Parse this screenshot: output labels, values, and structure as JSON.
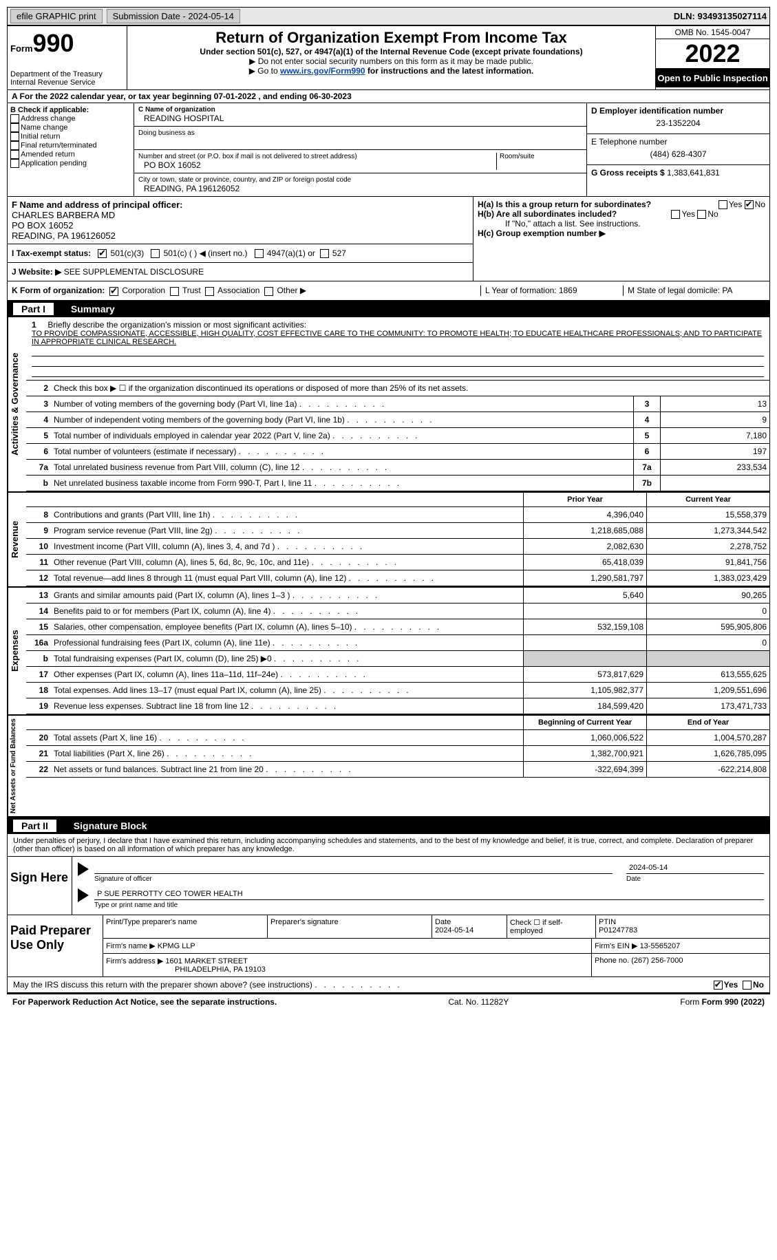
{
  "header_bar": {
    "efile": "efile GRAPHIC print",
    "submission": "Submission Date - 2024-05-14",
    "dln": "DLN: 93493135027114"
  },
  "top": {
    "form_label": "Form",
    "form_num": "990",
    "dept": "Department of the Treasury Internal Revenue Service",
    "title": "Return of Organization Exempt From Income Tax",
    "subtitle": "Under section 501(c), 527, or 4947(a)(1) of the Internal Revenue Code (except private foundations)",
    "note1": "▶ Do not enter social security numbers on this form as it may be made public.",
    "note2_pre": "▶ Go to ",
    "note2_link": "www.irs.gov/Form990",
    "note2_post": " for instructions and the latest information.",
    "omb": "OMB No. 1545-0047",
    "year": "2022",
    "open": "Open to Public Inspection"
  },
  "row_a": "A For the 2022 calendar year, or tax year beginning 07-01-2022   , and ending 06-30-2023",
  "box_b": {
    "label": "B Check if applicable:",
    "items": [
      "Address change",
      "Name change",
      "Initial return",
      "Final return/terminated",
      "Amended return",
      "Application pending"
    ]
  },
  "box_c": {
    "name_label": "C Name of organization",
    "name": "READING HOSPITAL",
    "dba_label": "Doing business as",
    "addr_label": "Number and street (or P.O. box if mail is not delivered to street address)",
    "room_label": "Room/suite",
    "addr": "PO BOX 16052",
    "city_label": "City or town, state or province, country, and ZIP or foreign postal code",
    "city": "READING, PA  196126052"
  },
  "box_d": {
    "ein_label": "D Employer identification number",
    "ein": "23-1352204",
    "tel_label": "E Telephone number",
    "tel": "(484) 628-4307",
    "gross_label": "G Gross receipts $",
    "gross": "1,383,641,831"
  },
  "box_f": {
    "label": "F  Name and address of principal officer:",
    "name": "CHARLES BARBERA MD",
    "addr1": "PO BOX 16052",
    "addr2": "READING, PA  196126052"
  },
  "box_h": {
    "ha": "H(a)  Is this a group return for subordinates?",
    "hb": "H(b)  Are all subordinates included?",
    "hb_note": "If \"No,\" attach a list. See instructions.",
    "hc": "H(c)  Group exemption number ▶",
    "yes": "Yes",
    "no": "No"
  },
  "row_i": {
    "label": "I   Tax-exempt status:",
    "opt1": "501(c)(3)",
    "opt2": "501(c) (  ) ◀ (insert no.)",
    "opt3": "4947(a)(1) or",
    "opt4": "527"
  },
  "row_j": {
    "label": "J   Website: ▶",
    "value": "SEE SUPPLEMENTAL DISCLOSURE"
  },
  "row_k": {
    "label": "K Form of organization:",
    "opts": [
      "Corporation",
      "Trust",
      "Association",
      "Other ▶"
    ]
  },
  "row_l": "L Year of formation: 1869",
  "row_m": "M State of legal domicile: PA",
  "part1_title": "Summary",
  "part1_num": "Part I",
  "mission": {
    "num": "1",
    "label": "Briefly describe the organization's mission or most significant activities:",
    "text": "TO PROVIDE COMPASSIONATE, ACCESSIBLE, HIGH QUALITY, COST EFFECTIVE CARE TO THE COMMUNITY: TO PROMOTE HEALTH; TO EDUCATE HEALTHCARE PROFESSIONALS; AND TO PARTICIPATE IN APPROPRIATE CLINICAL RESEARCH."
  },
  "line2": "Check this box ▶ ☐ if the organization discontinued its operations or disposed of more than 25% of its net assets.",
  "vert_labels": {
    "activities": "Activities & Governance",
    "revenue": "Revenue",
    "expenses": "Expenses",
    "netassets": "Net Assets or Fund Balances"
  },
  "activity_lines": [
    {
      "n": "3",
      "label": "Number of voting members of the governing body (Part VI, line 1a)",
      "box": "3",
      "val": "13"
    },
    {
      "n": "4",
      "label": "Number of independent voting members of the governing body (Part VI, line 1b)",
      "box": "4",
      "val": "9"
    },
    {
      "n": "5",
      "label": "Total number of individuals employed in calendar year 2022 (Part V, line 2a)",
      "box": "5",
      "val": "7,180"
    },
    {
      "n": "6",
      "label": "Total number of volunteers (estimate if necessary)",
      "box": "6",
      "val": "197"
    },
    {
      "n": "7a",
      "label": "Total unrelated business revenue from Part VIII, column (C), line 12",
      "box": "7a",
      "val": "233,534"
    },
    {
      "n": "b",
      "label": "Net unrelated business taxable income from Form 990-T, Part I, line 11",
      "box": "7b",
      "val": ""
    }
  ],
  "col_prior": "Prior Year",
  "col_current": "Current Year",
  "revenue_lines": [
    {
      "n": "8",
      "label": "Contributions and grants (Part VIII, line 1h)",
      "prior": "4,396,040",
      "curr": "15,558,379"
    },
    {
      "n": "9",
      "label": "Program service revenue (Part VIII, line 2g)",
      "prior": "1,218,685,088",
      "curr": "1,273,344,542"
    },
    {
      "n": "10",
      "label": "Investment income (Part VIII, column (A), lines 3, 4, and 7d )",
      "prior": "2,082,630",
      "curr": "2,278,752"
    },
    {
      "n": "11",
      "label": "Other revenue (Part VIII, column (A), lines 5, 6d, 8c, 9c, 10c, and 11e)",
      "prior": "65,418,039",
      "curr": "91,841,756"
    },
    {
      "n": "12",
      "label": "Total revenue—add lines 8 through 11 (must equal Part VIII, column (A), line 12)",
      "prior": "1,290,581,797",
      "curr": "1,383,023,429"
    }
  ],
  "expense_lines": [
    {
      "n": "13",
      "label": "Grants and similar amounts paid (Part IX, column (A), lines 1–3 )",
      "prior": "5,640",
      "curr": "90,265"
    },
    {
      "n": "14",
      "label": "Benefits paid to or for members (Part IX, column (A), line 4)",
      "prior": "",
      "curr": "0"
    },
    {
      "n": "15",
      "label": "Salaries, other compensation, employee benefits (Part IX, column (A), lines 5–10)",
      "prior": "532,159,108",
      "curr": "595,905,806"
    },
    {
      "n": "16a",
      "label": "Professional fundraising fees (Part IX, column (A), line 11e)",
      "prior": "",
      "curr": "0"
    },
    {
      "n": "b",
      "label": "Total fundraising expenses (Part IX, column (D), line 25) ▶0",
      "prior": "GREY",
      "curr": "GREY"
    },
    {
      "n": "17",
      "label": "Other expenses (Part IX, column (A), lines 11a–11d, 11f–24e)",
      "prior": "573,817,629",
      "curr": "613,555,625"
    },
    {
      "n": "18",
      "label": "Total expenses. Add lines 13–17 (must equal Part IX, column (A), line 25)",
      "prior": "1,105,982,377",
      "curr": "1,209,551,696"
    },
    {
      "n": "19",
      "label": "Revenue less expenses. Subtract line 18 from line 12",
      "prior": "184,599,420",
      "curr": "173,471,733"
    }
  ],
  "col_begin": "Beginning of Current Year",
  "col_end": "End of Year",
  "net_lines": [
    {
      "n": "20",
      "label": "Total assets (Part X, line 16)",
      "prior": "1,060,006,522",
      "curr": "1,004,570,287"
    },
    {
      "n": "21",
      "label": "Total liabilities (Part X, line 26)",
      "prior": "1,382,700,921",
      "curr": "1,626,785,095"
    },
    {
      "n": "22",
      "label": "Net assets or fund balances. Subtract line 21 from line 20",
      "prior": "-322,694,399",
      "curr": "-622,214,808"
    }
  ],
  "part2_num": "Part II",
  "part2_title": "Signature Block",
  "sig_decl": "Under penalties of perjury, I declare that I have examined this return, including accompanying schedules and statements, and to the best of my knowledge and belief, it is true, correct, and complete. Declaration of preparer (other than officer) is based on all information of which preparer has any knowledge.",
  "sign_here": "Sign Here",
  "sig_officer_label": "Signature of officer",
  "sig_date_label": "Date",
  "sig_date": "2024-05-14",
  "sig_name": "P SUE PERROTTY CEO TOWER HEALTH",
  "sig_name_label": "Type or print name and title",
  "paid_prep": "Paid Preparer Use Only",
  "prep": {
    "print_label": "Print/Type preparer's name",
    "sig_label": "Preparer's signature",
    "date_label": "Date",
    "date": "2024-05-14",
    "check_label": "Check ☐ if self-employed",
    "ptin_label": "PTIN",
    "ptin": "P01247783",
    "firm_name_label": "Firm's name    ▶",
    "firm_name": "KPMG LLP",
    "firm_ein_label": "Firm's EIN ▶",
    "firm_ein": "13-5565207",
    "firm_addr_label": "Firm's address ▶",
    "firm_addr1": "1601 MARKET STREET",
    "firm_addr2": "PHILADELPHIA, PA  19103",
    "phone_label": "Phone no.",
    "phone": "(267) 256-7000"
  },
  "discuss": "May the IRS discuss this return with the preparer shown above? (see instructions)",
  "discuss_yes": "Yes",
  "discuss_no": "No",
  "footer": {
    "paperwork": "For Paperwork Reduction Act Notice, see the separate instructions.",
    "cat": "Cat. No. 11282Y",
    "form": "Form 990 (2022)"
  }
}
